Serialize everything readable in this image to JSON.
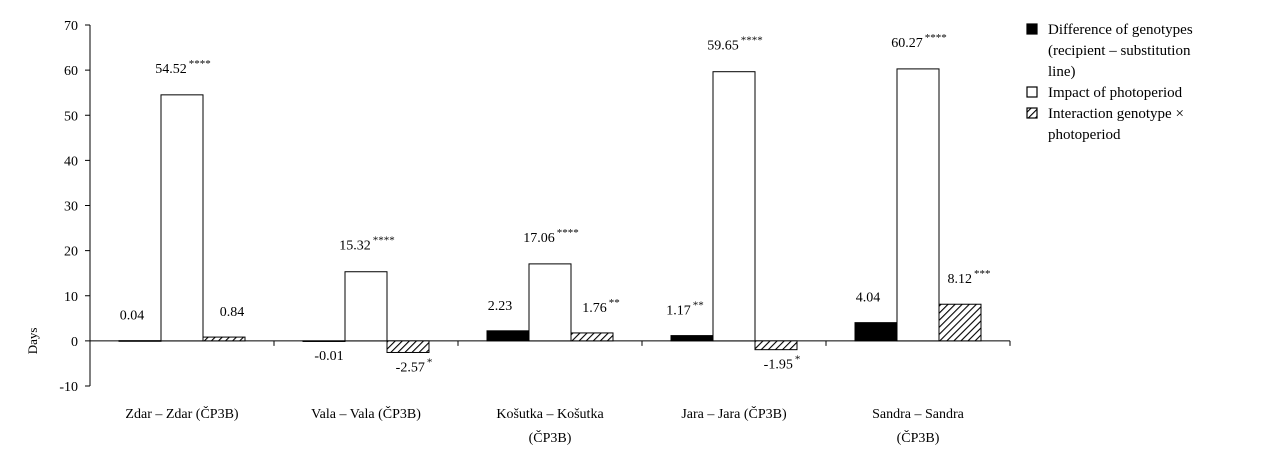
{
  "chart_data": {
    "type": "bar",
    "title": "",
    "xlabel": "",
    "ylabel": "Days",
    "ylim": [
      -10,
      70
    ],
    "yticks": [
      -10,
      0,
      10,
      20,
      30,
      40,
      50,
      60,
      70
    ],
    "grid": false,
    "legend_position": "right",
    "categories": [
      [
        "Zdar – Zdar (ČP3B)"
      ],
      [
        "Vala – Vala (ČP3B)"
      ],
      [
        "Košutka – Košutka",
        "(ČP3B)"
      ],
      [
        "Jara – Jara (ČP3B)"
      ],
      [
        "Sandra – Sandra",
        "(ČP3B)"
      ]
    ],
    "series": [
      {
        "name": [
          "Difference of genotypes",
          "(recipient – substitution",
          "line)"
        ],
        "fill": "solid",
        "color": "#000000",
        "values": [
          0.04,
          -0.01,
          2.23,
          1.17,
          4.04
        ],
        "labels": [
          "0.04",
          "-0.01",
          "2.23",
          "1.17",
          "4.04"
        ],
        "significance": [
          "",
          "",
          "",
          "**",
          ""
        ]
      },
      {
        "name": [
          "Impact of photoperiod"
        ],
        "fill": "empty",
        "color": "#ffffff",
        "values": [
          54.52,
          15.32,
          17.06,
          59.65,
          60.27
        ],
        "labels": [
          "54.52",
          "15.32",
          "17.06",
          "59.65",
          "60.27"
        ],
        "significance": [
          "****",
          "****",
          "****",
          "****",
          "****"
        ]
      },
      {
        "name": [
          "Interaction genotype ×",
          "photoperiod"
        ],
        "fill": "hatched",
        "color": "#000000",
        "values": [
          0.84,
          -2.57,
          1.76,
          -1.95,
          8.12
        ],
        "labels": [
          "0.84",
          "-2.57",
          "1.76",
          "-1.95",
          "8.12"
        ],
        "significance": [
          "",
          "*",
          "**",
          "*",
          "***"
        ]
      }
    ]
  }
}
